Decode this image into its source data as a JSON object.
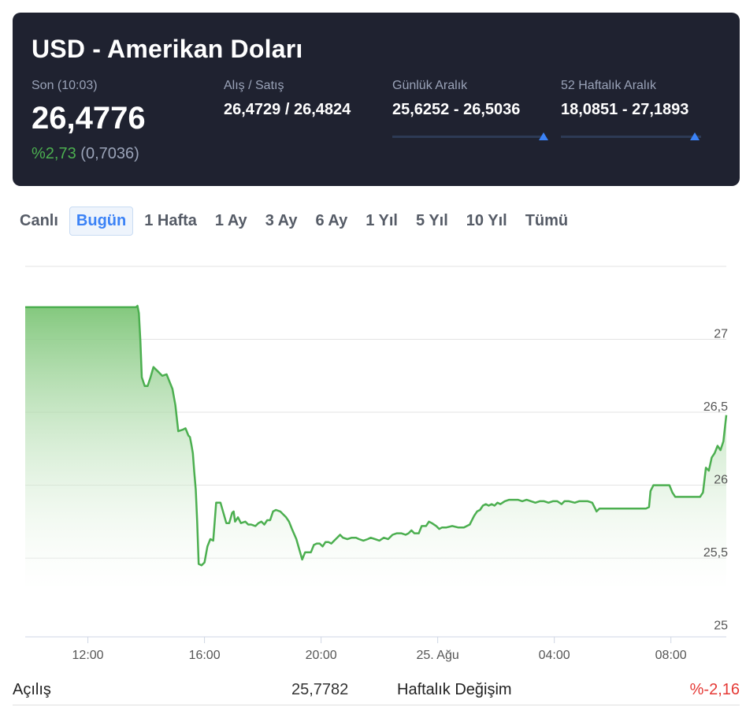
{
  "header": {
    "title": "USD - Amerikan Doları",
    "last_label": "Son (10:03)",
    "last_value": "26,4776",
    "change_pct": "%2,73",
    "change_abs": "(0,7036)",
    "bid_ask_label": "Alış / Satış",
    "bid_ask_value": "26,4729 / 26,4824",
    "daily_range_label": "Günlük Aralık",
    "daily_range_value": "25,6252 - 26,5036",
    "weekly52_range_label": "52 Haftalık Aralık",
    "weekly52_range_value": "18,0851 - 27,1893"
  },
  "tabs": [
    {
      "label": "Canlı",
      "active": false
    },
    {
      "label": "Bugün",
      "active": true
    },
    {
      "label": "1 Hafta",
      "active": false
    },
    {
      "label": "1 Ay",
      "active": false
    },
    {
      "label": "3 Ay",
      "active": false
    },
    {
      "label": "6 Ay",
      "active": false
    },
    {
      "label": "1 Yıl",
      "active": false
    },
    {
      "label": "5 Yıl",
      "active": false
    },
    {
      "label": "10 Yıl",
      "active": false
    },
    {
      "label": "Tümü",
      "active": false
    }
  ],
  "colors": {
    "line": "#4caf50",
    "accent": "#3b82f6",
    "negative": "#e53935",
    "card_bg": "#1f2230"
  },
  "chart_data": {
    "type": "area",
    "title": "",
    "xlabel": "",
    "ylabel": "",
    "ylim": [
      24.96,
      27.5
    ],
    "y_ticks": [
      "25",
      "25,5",
      "26",
      "26,5",
      "27"
    ],
    "y_tick_values": [
      25,
      25.5,
      26,
      26.5,
      27
    ],
    "x_tick_labels": [
      "12:00",
      "16:00",
      "20:00",
      "25. Ağu",
      "04:00",
      "08:00"
    ],
    "x_tick_hours": [
      12,
      16,
      20,
      24,
      28,
      32
    ],
    "x_range_hours": [
      9.85,
      33.9
    ],
    "grid": true,
    "series": [
      {
        "values": [
          [
            9.85,
            27.22
          ],
          [
            13.0,
            27.22
          ],
          [
            13.65,
            27.22
          ],
          [
            13.7,
            27.23
          ],
          [
            13.75,
            27.18
          ],
          [
            13.8,
            26.99
          ],
          [
            13.85,
            26.74
          ],
          [
            13.95,
            26.68
          ],
          [
            14.05,
            26.68
          ],
          [
            14.15,
            26.74
          ],
          [
            14.25,
            26.81
          ],
          [
            14.4,
            26.78
          ],
          [
            14.55,
            26.75
          ],
          [
            14.7,
            26.76
          ],
          [
            14.8,
            26.71
          ],
          [
            14.9,
            26.66
          ],
          [
            15.0,
            26.55
          ],
          [
            15.1,
            26.37
          ],
          [
            15.25,
            26.38
          ],
          [
            15.35,
            26.39
          ],
          [
            15.45,
            26.34
          ],
          [
            15.5,
            26.33
          ],
          [
            15.55,
            26.28
          ],
          [
            15.6,
            26.22
          ],
          [
            15.65,
            26.09
          ],
          [
            15.7,
            25.97
          ],
          [
            15.75,
            25.75
          ],
          [
            15.8,
            25.46
          ],
          [
            15.9,
            25.45
          ],
          [
            16.0,
            25.47
          ],
          [
            16.1,
            25.58
          ],
          [
            16.2,
            25.63
          ],
          [
            16.3,
            25.62
          ],
          [
            16.4,
            25.88
          ],
          [
            16.55,
            25.88
          ],
          [
            16.65,
            25.81
          ],
          [
            16.75,
            25.74
          ],
          [
            16.85,
            25.74
          ],
          [
            16.95,
            25.81
          ],
          [
            17.0,
            25.82
          ],
          [
            17.05,
            25.75
          ],
          [
            17.15,
            25.78
          ],
          [
            17.25,
            25.74
          ],
          [
            17.4,
            25.75
          ],
          [
            17.5,
            25.73
          ],
          [
            17.6,
            25.73
          ],
          [
            17.75,
            25.72
          ],
          [
            17.85,
            25.74
          ],
          [
            17.95,
            25.75
          ],
          [
            18.05,
            25.73
          ],
          [
            18.15,
            25.76
          ],
          [
            18.25,
            25.76
          ],
          [
            18.35,
            25.82
          ],
          [
            18.45,
            25.83
          ],
          [
            18.6,
            25.82
          ],
          [
            18.7,
            25.8
          ],
          [
            18.8,
            25.78
          ],
          [
            18.9,
            25.75
          ],
          [
            19.0,
            25.7
          ],
          [
            19.15,
            25.63
          ],
          [
            19.25,
            25.56
          ],
          [
            19.35,
            25.49
          ],
          [
            19.45,
            25.54
          ],
          [
            19.55,
            25.54
          ],
          [
            19.65,
            25.54
          ],
          [
            19.75,
            25.59
          ],
          [
            19.85,
            25.6
          ],
          [
            19.95,
            25.6
          ],
          [
            20.05,
            25.58
          ],
          [
            20.15,
            25.61
          ],
          [
            20.25,
            25.61
          ],
          [
            20.35,
            25.6
          ],
          [
            20.45,
            25.62
          ],
          [
            20.55,
            25.64
          ],
          [
            20.65,
            25.66
          ],
          [
            20.75,
            25.64
          ],
          [
            20.9,
            25.63
          ],
          [
            21.05,
            25.64
          ],
          [
            21.2,
            25.64
          ],
          [
            21.3,
            25.63
          ],
          [
            21.45,
            25.62
          ],
          [
            21.6,
            25.63
          ],
          [
            21.7,
            25.64
          ],
          [
            21.85,
            25.63
          ],
          [
            22.0,
            25.62
          ],
          [
            22.15,
            25.64
          ],
          [
            22.3,
            25.63
          ],
          [
            22.45,
            25.66
          ],
          [
            22.6,
            25.67
          ],
          [
            22.75,
            25.67
          ],
          [
            22.9,
            25.66
          ],
          [
            23.0,
            25.67
          ],
          [
            23.1,
            25.69
          ],
          [
            23.2,
            25.67
          ],
          [
            23.35,
            25.67
          ],
          [
            23.45,
            25.72
          ],
          [
            23.6,
            25.72
          ],
          [
            23.7,
            25.75
          ],
          [
            23.8,
            25.74
          ],
          [
            23.95,
            25.72
          ],
          [
            24.05,
            25.7
          ],
          [
            24.15,
            25.71
          ],
          [
            24.3,
            25.71
          ],
          [
            24.5,
            25.72
          ],
          [
            24.7,
            25.71
          ],
          [
            24.9,
            25.71
          ],
          [
            25.1,
            25.73
          ],
          [
            25.25,
            25.79
          ],
          [
            25.35,
            25.82
          ],
          [
            25.45,
            25.83
          ],
          [
            25.55,
            25.86
          ],
          [
            25.65,
            25.87
          ],
          [
            25.75,
            25.86
          ],
          [
            25.85,
            25.87
          ],
          [
            25.95,
            25.86
          ],
          [
            26.05,
            25.88
          ],
          [
            26.15,
            25.87
          ],
          [
            26.3,
            25.89
          ],
          [
            26.45,
            25.9
          ],
          [
            26.6,
            25.9
          ],
          [
            26.75,
            25.9
          ],
          [
            26.9,
            25.89
          ],
          [
            27.05,
            25.9
          ],
          [
            27.2,
            25.89
          ],
          [
            27.35,
            25.88
          ],
          [
            27.5,
            25.89
          ],
          [
            27.65,
            25.89
          ],
          [
            27.8,
            25.88
          ],
          [
            27.95,
            25.89
          ],
          [
            28.1,
            25.89
          ],
          [
            28.25,
            25.87
          ],
          [
            28.35,
            25.89
          ],
          [
            28.5,
            25.89
          ],
          [
            28.7,
            25.88
          ],
          [
            28.85,
            25.89
          ],
          [
            29.0,
            25.89
          ],
          [
            29.15,
            25.89
          ],
          [
            29.3,
            25.88
          ],
          [
            29.4,
            25.84
          ],
          [
            29.45,
            25.82
          ],
          [
            29.55,
            25.84
          ],
          [
            29.75,
            25.84
          ],
          [
            29.95,
            25.84
          ],
          [
            30.15,
            25.84
          ],
          [
            30.35,
            25.84
          ],
          [
            30.55,
            25.84
          ],
          [
            30.75,
            25.84
          ],
          [
            30.95,
            25.84
          ],
          [
            31.15,
            25.84
          ],
          [
            31.25,
            25.85
          ],
          [
            31.3,
            25.96
          ],
          [
            31.4,
            26.0
          ],
          [
            31.6,
            26.0
          ],
          [
            31.8,
            26.0
          ],
          [
            31.95,
            26.0
          ],
          [
            32.05,
            25.95
          ],
          [
            32.15,
            25.92
          ],
          [
            32.3,
            25.92
          ],
          [
            32.5,
            25.92
          ],
          [
            32.7,
            25.92
          ],
          [
            32.9,
            25.92
          ],
          [
            33.0,
            25.92
          ],
          [
            33.1,
            25.95
          ],
          [
            33.2,
            26.12
          ],
          [
            33.3,
            26.1
          ],
          [
            33.4,
            26.19
          ],
          [
            33.5,
            26.22
          ],
          [
            33.6,
            26.27
          ],
          [
            33.7,
            26.24
          ],
          [
            33.8,
            26.3
          ],
          [
            33.9,
            26.48
          ]
        ]
      }
    ]
  },
  "footer": {
    "open_label": "Açılış",
    "open_value": "25,7782",
    "weekly_change_label": "Haftalık Değişim",
    "weekly_change_value": "%-2,16"
  }
}
